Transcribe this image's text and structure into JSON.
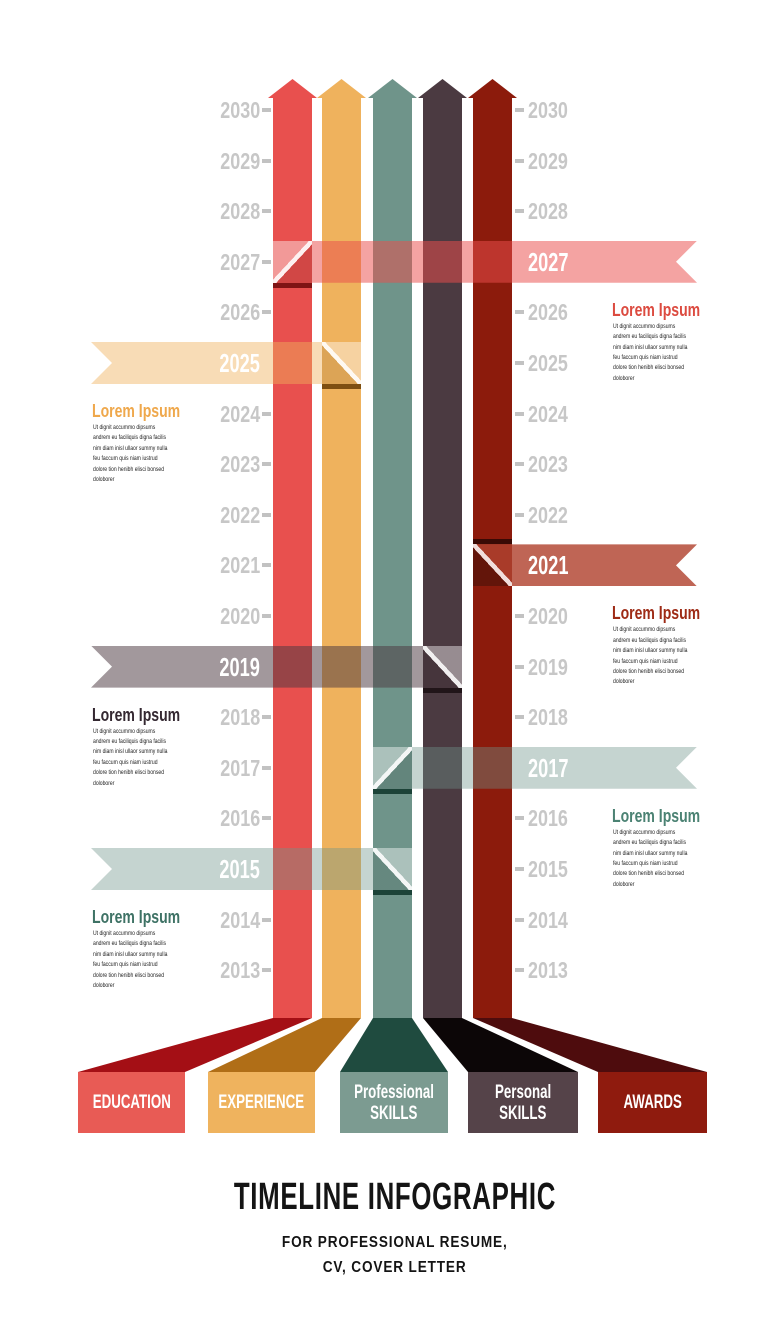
{
  "title": {
    "main": "TIMELINE INFOGRAPHIC",
    "subtitle": [
      "FOR PROFESSIONAL RESUME,",
      "CV, COVER LETTER"
    ]
  },
  "timeline": {
    "years": [
      "2030",
      "2029",
      "2028",
      "2027",
      "2026",
      "2025",
      "2024",
      "2023",
      "2022",
      "2021",
      "2020",
      "2019",
      "2018",
      "2017",
      "2016",
      "2015",
      "2014",
      "2013"
    ],
    "year_label_color": "#C7C7C7",
    "bars": [
      {
        "name": "education",
        "color": "#E8504E"
      },
      {
        "name": "experience",
        "color": "#EFB25D"
      },
      {
        "name": "professional-skills",
        "color": "#6F948A"
      },
      {
        "name": "personal-skills",
        "color": "#4B3A41"
      },
      {
        "name": "awards",
        "color": "#8C1B0C"
      }
    ],
    "ribbons": [
      {
        "year": "2027",
        "side": "right",
        "bar": 0,
        "color": "rgba(233,79,77,0.52)",
        "shadow": "#7F1414",
        "fold": "light"
      },
      {
        "year": "2025",
        "side": "left",
        "bar": 1,
        "color": "rgba(239,178,93,0.45)",
        "shadow": "#7E4F12",
        "fold": "light"
      },
      {
        "year": "2021",
        "side": "right",
        "bar": 4,
        "color": "rgba(166,42,20,0.72)",
        "shadow": "#3A0A05",
        "fold": "dark"
      },
      {
        "year": "2019",
        "side": "left",
        "bar": 3,
        "color": "rgba(76,58,65,0.52)",
        "shadow": "#211519",
        "fold": "light"
      },
      {
        "year": "2017",
        "side": "right",
        "bar": 2,
        "color": "rgba(111,148,138,0.40)",
        "shadow": "#1C4338",
        "fold": "light"
      },
      {
        "year": "2015",
        "side": "left",
        "bar": 2,
        "color": "rgba(111,148,138,0.40)",
        "shadow": "#1C4338",
        "fold": "light"
      }
    ],
    "entries": [
      {
        "year": "2027",
        "side": "right",
        "heading": "Lorem Ipsum",
        "heading_color": "#DC4B40",
        "body": [
          "Ut dignit accummo dipsums",
          "andrem eu faciliquis digna facilis",
          "nim diam inisl ullaor summy nulla",
          "feu faccum quis niam iustrud",
          "dolore tion henibh elisci bonsed",
          "doloborer"
        ]
      },
      {
        "year": "2025",
        "side": "left",
        "heading": "Lorem Ipsum",
        "heading_color": "#EFA84C",
        "body": [
          "Ut dignit accummo dipsums",
          "andrem eu faciliquis digna facilis",
          "nim diam inisl ullaor summy nulla",
          "feu faccum quis niam iustrud",
          "dolore tion henibh elisci bonsed",
          "doloborer"
        ]
      },
      {
        "year": "2021",
        "side": "right",
        "heading": "Lorem Ipsum",
        "heading_color": "#9E2B16",
        "body": [
          "Ut dignit accummo dipsums",
          "andrem eu faciliquis digna facilis",
          "nim diam inisl ullaor summy nulla",
          "feu faccum quis niam iustrud",
          "dolore tion henibh elisci bonsed",
          "doloborer"
        ]
      },
      {
        "year": "2019",
        "side": "left",
        "heading": "Lorem Ipsum",
        "heading_color": "#342831",
        "body": [
          "Ut dignit accummo dipsums",
          "andrem eu faciliquis digna facilis",
          "nim diam inisl ullaor summy nulla",
          "feu faccum quis niam iustrud",
          "dolore tion henibh elisci bonsed",
          "doloborer"
        ]
      },
      {
        "year": "2017",
        "side": "right",
        "heading": "Lorem Ipsum",
        "heading_color": "#4B8273",
        "body": [
          "Ut dignit accummo dipsums",
          "andrem eu faciliquis digna facilis",
          "nim diam inisl ullaor summy nulla",
          "feu faccum quis niam iustrud",
          "dolore tion henibh elisci bonsed",
          "doloborer"
        ]
      },
      {
        "year": "2015",
        "side": "left",
        "heading": "Lorem Ipsum",
        "heading_color": "#3E7265",
        "body": [
          "Ut dignit accummo dipsums",
          "andrem eu faciliquis digna facilis",
          "nim diam inisl ullaor summy nulla",
          "feu faccum quis niam iustrud",
          "dolore tion henibh elisci bonsed",
          "doloborer"
        ]
      }
    ]
  },
  "legend": {
    "boxes": [
      {
        "lines": [
          "EDUCATION"
        ],
        "color": "#E85B55",
        "leg_color": "#A40F15"
      },
      {
        "lines": [
          "EXPERIENCE"
        ],
        "color": "#EFB35E",
        "leg_color": "#B06E17"
      },
      {
        "lines": [
          "Professional",
          "SKILLS"
        ],
        "color": "#7C9B91",
        "leg_color": "#1F4B3F"
      },
      {
        "lines": [
          "Personal",
          "SKILLS"
        ],
        "color": "#554349",
        "leg_color": "#0C0607"
      },
      {
        "lines": [
          "AWARDS"
        ],
        "color": "#8F1B0E",
        "leg_color": "#4E0C0D"
      }
    ]
  }
}
